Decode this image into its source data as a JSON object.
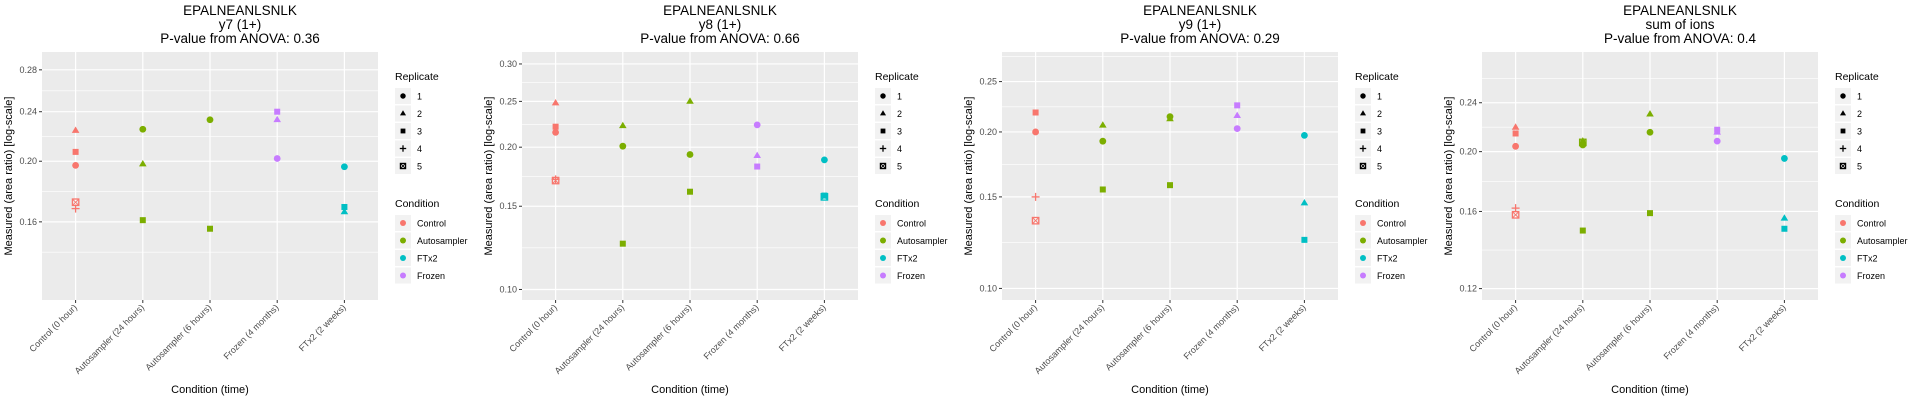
{
  "colors": {
    "Control": "#F8766D",
    "Autosampler": "#7CAE00",
    "FTx2": "#00BFC4",
    "Frozen": "#C77CFF",
    "panel_bg": "#EBEBEB",
    "grid": "#FFFFFF"
  },
  "legend": {
    "replicate_title": "Replicate",
    "replicates": [
      {
        "label": "1",
        "shape": "circle"
      },
      {
        "label": "2",
        "shape": "triangle"
      },
      {
        "label": "3",
        "shape": "square"
      },
      {
        "label": "4",
        "shape": "plus"
      },
      {
        "label": "5",
        "shape": "square-cross"
      }
    ],
    "condition_title": "Condition",
    "conditions": [
      "Control",
      "Autosampler",
      "FTx2",
      "Frozen"
    ]
  },
  "chart_data": [
    {
      "type": "scatter",
      "title": "EPALNEANLSNLK",
      "subtitle": "y7 (1+)",
      "caption": "P-value from ANOVA: 0.36",
      "xlabel": "Condition (time)",
      "ylabel": "Measured (area ratio) [log-scale]",
      "yscale": "log",
      "ylim": [
        0.12,
        0.299
      ],
      "yticks": [
        0.16,
        0.2,
        0.24,
        0.28
      ],
      "ytick_labels": [
        "0.16",
        "0.20",
        "0.24",
        "0.28"
      ],
      "categories": [
        "Control (0 hour)",
        "Autosampler (24 hours)",
        "Autosampler (6 hours)",
        "Frozen (4 months)",
        "FTx2 (2 weeks)"
      ],
      "points": [
        {
          "x": "Control (0 hour)",
          "condition": "Control",
          "replicate": "1",
          "y": 0.197
        },
        {
          "x": "Control (0 hour)",
          "condition": "Control",
          "replicate": "2",
          "y": 0.224
        },
        {
          "x": "Control (0 hour)",
          "condition": "Control",
          "replicate": "3",
          "y": 0.207
        },
        {
          "x": "Control (0 hour)",
          "condition": "Control",
          "replicate": "4",
          "y": 0.168
        },
        {
          "x": "Control (0 hour)",
          "condition": "Control",
          "replicate": "5",
          "y": 0.172
        },
        {
          "x": "Autosampler (24 hours)",
          "condition": "Autosampler",
          "replicate": "1",
          "y": 0.225
        },
        {
          "x": "Autosampler (24 hours)",
          "condition": "Autosampler",
          "replicate": "2",
          "y": 0.198
        },
        {
          "x": "Autosampler (24 hours)",
          "condition": "Autosampler",
          "replicate": "3",
          "y": 0.161
        },
        {
          "x": "Autosampler (6 hours)",
          "condition": "Autosampler",
          "replicate": "1",
          "y": 0.233
        },
        {
          "x": "Autosampler (6 hours)",
          "condition": "Autosampler",
          "replicate": "3",
          "y": 0.156
        },
        {
          "x": "Frozen (4 months)",
          "condition": "Frozen",
          "replicate": "1",
          "y": 0.202
        },
        {
          "x": "Frozen (4 months)",
          "condition": "Frozen",
          "replicate": "2",
          "y": 0.233
        },
        {
          "x": "Frozen (4 months)",
          "condition": "Frozen",
          "replicate": "3",
          "y": 0.24
        },
        {
          "x": "FTx2 (2 weeks)",
          "condition": "FTx2",
          "replicate": "1",
          "y": 0.196
        },
        {
          "x": "FTx2 (2 weeks)",
          "condition": "FTx2",
          "replicate": "2",
          "y": 0.166
        },
        {
          "x": "FTx2 (2 weeks)",
          "condition": "FTx2",
          "replicate": "3",
          "y": 0.169
        }
      ]
    },
    {
      "type": "scatter",
      "title": "EPALNEANLSNLK",
      "subtitle": "y8 (1+)",
      "caption": "P-value from ANOVA: 0.66",
      "xlabel": "Condition (time)",
      "ylabel": "Measured (area ratio) [log-scale]",
      "yscale": "log",
      "ylim": [
        0.095,
        0.318
      ],
      "yticks": [
        0.1,
        0.15,
        0.2,
        0.25,
        0.3
      ],
      "ytick_labels": [
        "0.10",
        "0.15",
        "0.20",
        "0.25",
        "0.30"
      ],
      "categories": [
        "Control (0 hour)",
        "Autosampler (24 hours)",
        "Autosampler (6 hours)",
        "Frozen (4 months)",
        "FTx2 (2 weeks)"
      ],
      "points": [
        {
          "x": "Control (0 hour)",
          "condition": "Control",
          "replicate": "1",
          "y": 0.215
        },
        {
          "x": "Control (0 hour)",
          "condition": "Control",
          "replicate": "2",
          "y": 0.248
        },
        {
          "x": "Control (0 hour)",
          "condition": "Control",
          "replicate": "3",
          "y": 0.221
        },
        {
          "x": "Control (0 hour)",
          "condition": "Control",
          "replicate": "4",
          "y": 0.171
        },
        {
          "x": "Control (0 hour)",
          "condition": "Control",
          "replicate": "5",
          "y": 0.17
        },
        {
          "x": "Autosampler (24 hours)",
          "condition": "Autosampler",
          "replicate": "1",
          "y": 0.201
        },
        {
          "x": "Autosampler (24 hours)",
          "condition": "Autosampler",
          "replicate": "2",
          "y": 0.222
        },
        {
          "x": "Autosampler (24 hours)",
          "condition": "Autosampler",
          "replicate": "3",
          "y": 0.125
        },
        {
          "x": "Autosampler (6 hours)",
          "condition": "Autosampler",
          "replicate": "1",
          "y": 0.193
        },
        {
          "x": "Autosampler (6 hours)",
          "condition": "Autosampler",
          "replicate": "2",
          "y": 0.25
        },
        {
          "x": "Autosampler (6 hours)",
          "condition": "Autosampler",
          "replicate": "3",
          "y": 0.161
        },
        {
          "x": "Frozen (4 months)",
          "condition": "Frozen",
          "replicate": "1",
          "y": 0.223
        },
        {
          "x": "Frozen (4 months)",
          "condition": "Frozen",
          "replicate": "2",
          "y": 0.192
        },
        {
          "x": "Frozen (4 months)",
          "condition": "Frozen",
          "replicate": "3",
          "y": 0.182
        },
        {
          "x": "FTx2 (2 weeks)",
          "condition": "FTx2",
          "replicate": "1",
          "y": 0.188
        },
        {
          "x": "FTx2 (2 weeks)",
          "condition": "FTx2",
          "replicate": "3",
          "y": 0.158
        },
        {
          "x": "FTx2 (2 weeks)",
          "condition": "FTx2",
          "replicate": "5",
          "y": 0.157
        }
      ]
    },
    {
      "type": "scatter",
      "title": "EPALNEANLSNLK",
      "subtitle": "y9 (1+)",
      "caption": "P-value from ANOVA: 0.29",
      "xlabel": "Condition (time)",
      "ylabel": "Measured (area ratio) [log-scale]",
      "yscale": "log",
      "ylim": [
        0.095,
        0.285
      ],
      "yticks": [
        0.1,
        0.15,
        0.2,
        0.25
      ],
      "ytick_labels": [
        "0.10",
        "0.15",
        "0.20",
        "0.25"
      ],
      "categories": [
        "Control (0 hour)",
        "Autosampler (24 hours)",
        "Autosampler (6 hours)",
        "Frozen (4 months)",
        "FTx2 (2 weeks)"
      ],
      "points": [
        {
          "x": "Control (0 hour)",
          "condition": "Control",
          "replicate": "1",
          "y": 0.2
        },
        {
          "x": "Control (0 hour)",
          "condition": "Control",
          "replicate": "3",
          "y": 0.218
        },
        {
          "x": "Control (0 hour)",
          "condition": "Control",
          "replicate": "4",
          "y": 0.15
        },
        {
          "x": "Control (0 hour)",
          "condition": "Control",
          "replicate": "5",
          "y": 0.135
        },
        {
          "x": "Autosampler (24 hours)",
          "condition": "Autosampler",
          "replicate": "1",
          "y": 0.192
        },
        {
          "x": "Autosampler (24 hours)",
          "condition": "Autosampler",
          "replicate": "2",
          "y": 0.206
        },
        {
          "x": "Autosampler (24 hours)",
          "condition": "Autosampler",
          "replicate": "3",
          "y": 0.155
        },
        {
          "x": "Autosampler (6 hours)",
          "condition": "Autosampler",
          "replicate": "1",
          "y": 0.214
        },
        {
          "x": "Autosampler (6 hours)",
          "condition": "Autosampler",
          "replicate": "2",
          "y": 0.212
        },
        {
          "x": "Autosampler (6 hours)",
          "condition": "Autosampler",
          "replicate": "3",
          "y": 0.158
        },
        {
          "x": "Frozen (4 months)",
          "condition": "Frozen",
          "replicate": "1",
          "y": 0.203
        },
        {
          "x": "Frozen (4 months)",
          "condition": "Frozen",
          "replicate": "2",
          "y": 0.215
        },
        {
          "x": "Frozen (4 months)",
          "condition": "Frozen",
          "replicate": "3",
          "y": 0.225
        },
        {
          "x": "FTx2 (2 weeks)",
          "condition": "FTx2",
          "replicate": "1",
          "y": 0.197
        },
        {
          "x": "FTx2 (2 weeks)",
          "condition": "FTx2",
          "replicate": "2",
          "y": 0.146
        },
        {
          "x": "FTx2 (2 weeks)",
          "condition": "FTx2",
          "replicate": "3",
          "y": 0.124
        }
      ]
    },
    {
      "type": "scatter",
      "title": "EPALNEANLSNLK",
      "subtitle": "sum of ions",
      "caption": "P-value from ANOVA: 0.4",
      "xlabel": "Condition (time)",
      "ylabel": "Measured (area ratio) [log-scale]",
      "yscale": "log",
      "ylim": [
        0.115,
        0.29
      ],
      "yticks": [
        0.12,
        0.16,
        0.2,
        0.24
      ],
      "ytick_labels": [
        "0.12",
        "0.16",
        "0.20",
        "0.24"
      ],
      "categories": [
        "Control (0 hour)",
        "Autosampler (24 hours)",
        "Autosampler (6 hours)",
        "Frozen (4 months)",
        "FTx2 (2 weeks)"
      ],
      "points": [
        {
          "x": "Control (0 hour)",
          "condition": "Control",
          "replicate": "1",
          "y": 0.204
        },
        {
          "x": "Control (0 hour)",
          "condition": "Control",
          "replicate": "2",
          "y": 0.219
        },
        {
          "x": "Control (0 hour)",
          "condition": "Control",
          "replicate": "3",
          "y": 0.214
        },
        {
          "x": "Control (0 hour)",
          "condition": "Control",
          "replicate": "4",
          "y": 0.162
        },
        {
          "x": "Control (0 hour)",
          "condition": "Control",
          "replicate": "5",
          "y": 0.158
        },
        {
          "x": "Autosampler (24 hours)",
          "condition": "Autosampler",
          "replicate": "1",
          "y": 0.205
        },
        {
          "x": "Autosampler (24 hours)",
          "condition": "Autosampler",
          "replicate": "2",
          "y": 0.208
        },
        {
          "x": "Autosampler (24 hours)",
          "condition": "Autosampler",
          "replicate": "3",
          "y": 0.149
        },
        {
          "x": "Autosampler (24 hours)",
          "condition": "Autosampler",
          "replicate": "5",
          "y": 0.207
        },
        {
          "x": "Autosampler (6 hours)",
          "condition": "Autosampler",
          "replicate": "1",
          "y": 0.215
        },
        {
          "x": "Autosampler (6 hours)",
          "condition": "Autosampler",
          "replicate": "2",
          "y": 0.23
        },
        {
          "x": "Autosampler (6 hours)",
          "condition": "Autosampler",
          "replicate": "3",
          "y": 0.159
        },
        {
          "x": "Frozen (4 months)",
          "condition": "Frozen",
          "replicate": "1",
          "y": 0.208
        },
        {
          "x": "Frozen (4 months)",
          "condition": "Frozen",
          "replicate": "2",
          "y": 0.215
        },
        {
          "x": "Frozen (4 months)",
          "condition": "Frozen",
          "replicate": "3",
          "y": 0.217
        },
        {
          "x": "FTx2 (2 weeks)",
          "condition": "FTx2",
          "replicate": "1",
          "y": 0.195
        },
        {
          "x": "FTx2 (2 weeks)",
          "condition": "FTx2",
          "replicate": "2",
          "y": 0.156
        },
        {
          "x": "FTx2 (2 weeks)",
          "condition": "FTx2",
          "replicate": "3",
          "y": 0.15
        }
      ]
    }
  ]
}
